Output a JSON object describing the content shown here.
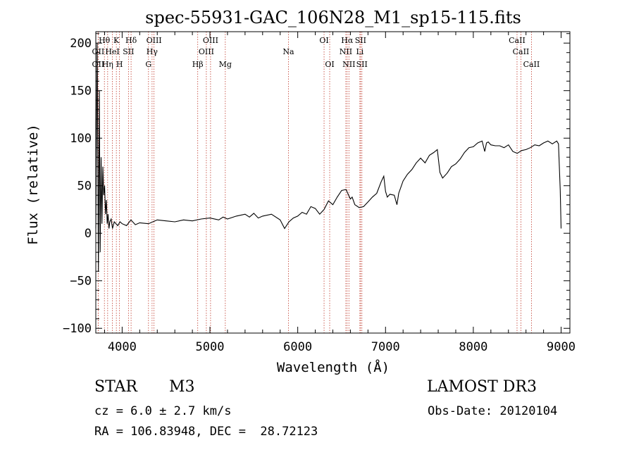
{
  "chart_data": {
    "type": "line",
    "title": "spec-55931-GAC_106N28_M1_sp15-115.fits",
    "xlabel": "Wavelength (Å)",
    "ylabel": "Flux (relative)",
    "xlim": [
      3700,
      9100
    ],
    "ylim": [
      -105,
      212
    ],
    "xticks": [
      4000,
      5000,
      6000,
      7000,
      8000,
      9000
    ],
    "yticks": [
      -100,
      -50,
      0,
      50,
      100,
      150,
      200
    ],
    "grid": false,
    "series": [
      {
        "name": "flux",
        "x": [
          3700,
          3715,
          3730,
          3740,
          3750,
          3760,
          3770,
          3780,
          3790,
          3800,
          3810,
          3820,
          3830,
          3840,
          3850,
          3860,
          3875,
          3890,
          3910,
          3930,
          3950,
          3975,
          4000,
          4050,
          4100,
          4150,
          4200,
          4300,
          4400,
          4500,
          4600,
          4700,
          4800,
          4900,
          5000,
          5100,
          5150,
          5200,
          5300,
          5400,
          5450,
          5500,
          5550,
          5600,
          5700,
          5800,
          5850,
          5900,
          5950,
          6000,
          6050,
          6100,
          6150,
          6200,
          6250,
          6300,
          6350,
          6400,
          6450,
          6500,
          6550,
          6580,
          6600,
          6620,
          6650,
          6700,
          6750,
          6800,
          6850,
          6900,
          6950,
          6980,
          7000,
          7020,
          7050,
          7100,
          7130,
          7150,
          7200,
          7250,
          7300,
          7350,
          7400,
          7450,
          7500,
          7550,
          7590,
          7620,
          7650,
          7700,
          7750,
          7800,
          7850,
          7900,
          7950,
          8000,
          8050,
          8100,
          8130,
          8150,
          8170,
          8200,
          8250,
          8300,
          8350,
          8400,
          8450,
          8500,
          8550,
          8600,
          8650,
          8700,
          8750,
          8800,
          8850,
          8900,
          8950,
          8970,
          8990,
          9000
        ],
        "y": [
          5,
          200,
          -40,
          150,
          -20,
          80,
          10,
          70,
          40,
          50,
          20,
          35,
          10,
          20,
          5,
          12,
          15,
          5,
          12,
          10,
          8,
          12,
          10,
          8,
          14,
          9,
          11,
          10,
          14,
          13,
          12,
          14,
          13,
          15,
          16,
          14,
          17,
          15,
          18,
          20,
          17,
          21,
          16,
          18,
          20,
          14,
          5,
          12,
          16,
          18,
          22,
          20,
          28,
          26,
          20,
          25,
          34,
          30,
          38,
          45,
          46,
          40,
          36,
          38,
          30,
          27,
          28,
          33,
          38,
          42,
          54,
          60,
          44,
          38,
          41,
          40,
          30,
          42,
          55,
          62,
          67,
          74,
          79,
          74,
          82,
          85,
          88,
          64,
          58,
          63,
          70,
          73,
          78,
          85,
          90,
          91,
          95,
          97,
          86,
          95,
          96,
          93,
          92,
          92,
          90,
          93,
          86,
          84,
          87,
          88,
          90,
          93,
          92,
          95,
          97,
          94,
          97,
          94,
          45,
          5
        ]
      }
    ],
    "lines": [
      {
        "wl": 3727,
        "label": "OII",
        "row": 2
      },
      {
        "wl": 3727,
        "label": "OII",
        "row": 3
      },
      {
        "wl": 3798,
        "label": "Hθ",
        "row": 1
      },
      {
        "wl": 3835,
        "label": "Hη",
        "row": 3
      },
      {
        "wl": 3889,
        "label": "HeI",
        "row": 2
      },
      {
        "wl": 3934,
        "label": "K",
        "row": 1
      },
      {
        "wl": 3970,
        "label": "H",
        "row": 3
      },
      {
        "wl": 4072,
        "label": "SII",
        "row": 2
      },
      {
        "wl": 4102,
        "label": "Hδ",
        "row": 1
      },
      {
        "wl": 4300,
        "label": "G",
        "row": 3
      },
      {
        "wl": 4341,
        "label": "Hγ",
        "row": 2
      },
      {
        "wl": 4363,
        "label": "OIII",
        "row": 1
      },
      {
        "wl": 4861,
        "label": "Hβ",
        "row": 3
      },
      {
        "wl": 4959,
        "label": "OIII",
        "row": 2
      },
      {
        "wl": 5007,
        "label": "OIII",
        "row": 1
      },
      {
        "wl": 5175,
        "label": "Mg",
        "row": 3
      },
      {
        "wl": 5894,
        "label": "Na",
        "row": 2
      },
      {
        "wl": 6300,
        "label": "OI",
        "row": 1
      },
      {
        "wl": 6364,
        "label": "OI",
        "row": 3
      },
      {
        "wl": 6548,
        "label": "NII",
        "row": 2
      },
      {
        "wl": 6563,
        "label": "Hα",
        "row": 1
      },
      {
        "wl": 6583,
        "label": "NII",
        "row": 3
      },
      {
        "wl": 6708,
        "label": "Li",
        "row": 2
      },
      {
        "wl": 6716,
        "label": "SII",
        "row": 1
      },
      {
        "wl": 6731,
        "label": "SII",
        "row": 3
      },
      {
        "wl": 8498,
        "label": "CaII",
        "row": 1
      },
      {
        "wl": 8542,
        "label": "CaII",
        "row": 2
      },
      {
        "wl": 8662,
        "label": "CaII",
        "row": 3
      }
    ]
  },
  "info": {
    "class": "STAR",
    "subclass": "M3",
    "survey": "LAMOST DR3",
    "cz": "cz = 6.0 ± 2.7 km/s",
    "obs_date": "Obs-Date: 20120104",
    "coords": "RA = 106.83948, DEC =  28.72123"
  },
  "colors": {
    "line_marker": "#c0392b",
    "spectrum": "#000000"
  }
}
